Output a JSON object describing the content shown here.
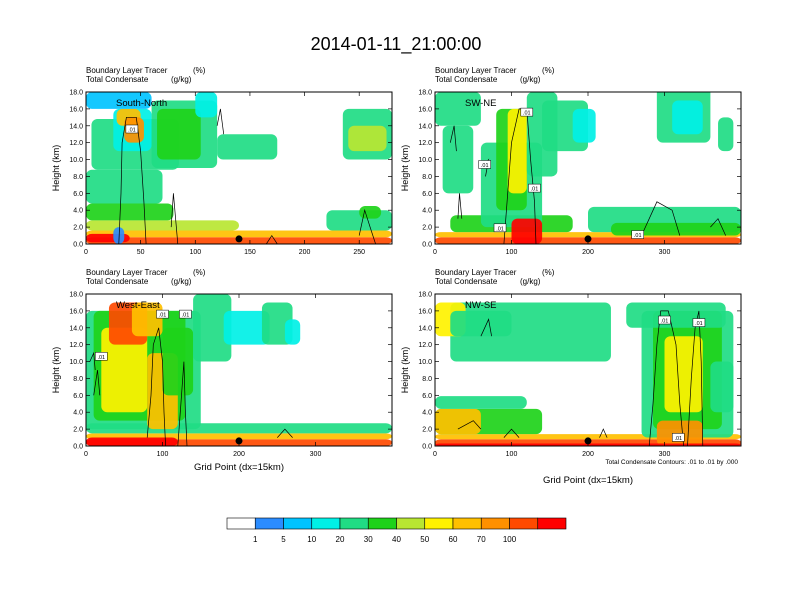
{
  "figure_title": "2014-01-11_21:00:00",
  "footnote": "Total Condensate Contours: .01 to .01 by .000",
  "colorbar": {
    "levels": [
      "1",
      "5",
      "10",
      "20",
      "30",
      "40",
      "50",
      "60",
      "70",
      "100"
    ],
    "colors": [
      "#ffffff",
      "#2b8cff",
      "#00c3ff",
      "#00f0e6",
      "#20dc84",
      "#1ed21a",
      "#b8e632",
      "#fff200",
      "#ffc000",
      "#ff9000",
      "#ff4a00",
      "#ff0000"
    ]
  },
  "chart_data": [
    {
      "type": "contour",
      "panel_label": "South-North",
      "title_line1": "Boundary Layer Tracer",
      "title_unit1": "(%)",
      "title_line2": "Total Condensate",
      "title_unit2": "(g/kg)",
      "ylabel": "Height (km)",
      "xlabel": "",
      "xlim": [
        0,
        280
      ],
      "ylim": [
        0,
        18
      ],
      "xticks": [
        "0",
        "50",
        "100",
        "150",
        "200",
        "250"
      ],
      "yticks": [
        "0.0",
        "2.0",
        "4.0",
        "6.0",
        "8.0",
        "10.0",
        "12.0",
        "14.0",
        "16.0",
        "18.0"
      ],
      "marker_x": 140,
      "contour_labels": [
        ".01"
      ]
    },
    {
      "type": "contour",
      "panel_label": "SW-NE",
      "title_line1": "Boundary Layer Tracer",
      "title_unit1": "(%)",
      "title_line2": "Total Condensate",
      "title_unit2": "(g/kg)",
      "ylabel": "Height (km)",
      "xlabel": "",
      "xlim": [
        0,
        400
      ],
      "ylim": [
        0,
        18
      ],
      "xticks": [
        "0",
        "100",
        "200",
        "300"
      ],
      "yticks": [
        "0.0",
        "2.0",
        "4.0",
        "6.0",
        "8.0",
        "10.0",
        "12.0",
        "14.0",
        "16.0",
        "18.0"
      ],
      "marker_x": 200,
      "contour_labels": [
        ".01",
        ".01",
        ".01",
        ".01",
        ".01"
      ]
    },
    {
      "type": "contour",
      "panel_label": "West-East",
      "title_line1": "Boundary Layer Tracer",
      "title_unit1": "(%)",
      "title_line2": "Total Condensate",
      "title_unit2": "(g/kg)",
      "ylabel": "Height (km)",
      "xlabel": "Grid Point (dx=15km)",
      "xlim": [
        0,
        400
      ],
      "ylim": [
        0,
        18
      ],
      "xticks": [
        "0",
        "100",
        "200",
        "300"
      ],
      "yticks": [
        "0.0",
        "2.0",
        "4.0",
        "6.0",
        "8.0",
        "10.0",
        "12.0",
        "14.0",
        "16.0",
        "18.0"
      ],
      "marker_x": 200,
      "contour_labels": [
        ".01",
        ".01",
        ".01"
      ]
    },
    {
      "type": "contour",
      "panel_label": "NW-SE",
      "title_line1": "Boundary Layer Tracer",
      "title_unit1": "(%)",
      "title_line2": "Total Condensate",
      "title_unit2": "(g/kg)",
      "ylabel": "Height (km)",
      "xlabel": "Grid Point (dx=15km)",
      "xlim": [
        0,
        400
      ],
      "ylim": [
        0,
        18
      ],
      "xticks": [
        "0",
        "100",
        "200",
        "300"
      ],
      "yticks": [
        "0.0",
        "2.0",
        "4.0",
        "6.0",
        "8.0",
        "10.0",
        "12.0",
        "14.0",
        "16.0",
        "18.0"
      ],
      "marker_x": 200,
      "contour_labels": [
        ".01",
        ".01",
        ".01"
      ]
    }
  ]
}
